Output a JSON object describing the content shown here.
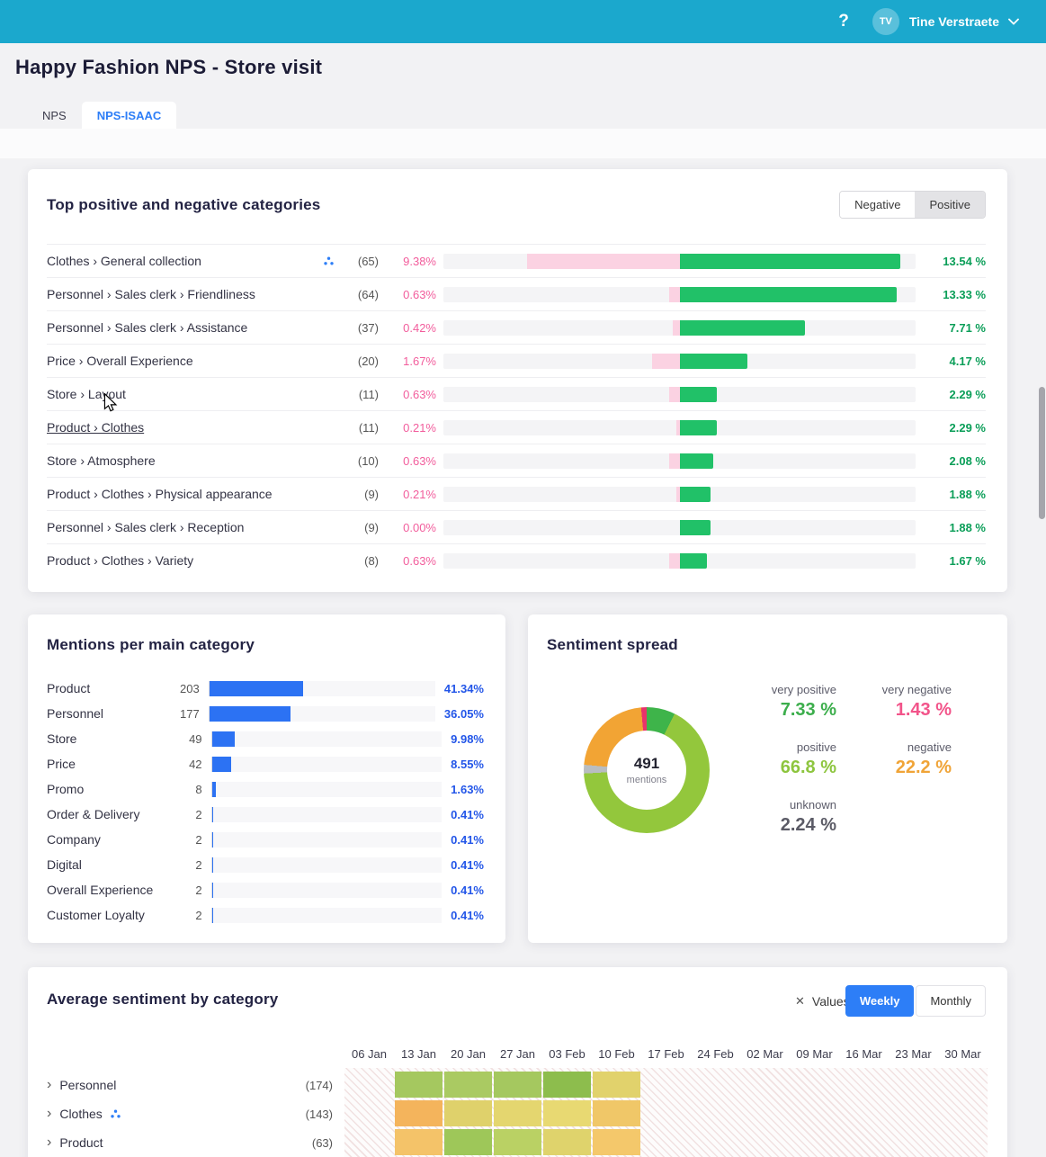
{
  "icons": {
    "chevron_right": "›",
    "close": "✕"
  },
  "topbar": {
    "help_label": "?",
    "avatar_initials": "TV",
    "user_name": "Tine Verstraete"
  },
  "page": {
    "title": "Happy Fashion NPS - Store visit",
    "tabs": [
      {
        "label": "NPS"
      },
      {
        "label": "NPS-ISAAC"
      }
    ]
  },
  "top_categories": {
    "title": "Top positive and negative categories",
    "toggle_negative": "Negative",
    "toggle_positive": "Positive",
    "bar_scale_pct_per_unit": 3.45,
    "rows": [
      {
        "label": "Clothes › General collection",
        "has_icon": true,
        "underline": false,
        "count": "(65)",
        "neg_label": "9.38%",
        "pos_label": "13.54 %",
        "neg": 9.38,
        "pos": 13.54
      },
      {
        "label": "Personnel › Sales clerk › Friendliness",
        "has_icon": false,
        "underline": false,
        "count": "(64)",
        "neg_label": "0.63%",
        "pos_label": "13.33 %",
        "neg": 0.63,
        "pos": 13.33
      },
      {
        "label": "Personnel › Sales clerk › Assistance",
        "has_icon": false,
        "underline": false,
        "count": "(37)",
        "neg_label": "0.42%",
        "pos_label": "7.71 %",
        "neg": 0.42,
        "pos": 7.71
      },
      {
        "label": "Price › Overall Experience",
        "has_icon": false,
        "underline": false,
        "count": "(20)",
        "neg_label": "1.67%",
        "pos_label": "4.17 %",
        "neg": 1.67,
        "pos": 4.17
      },
      {
        "label": "Store › Layout",
        "has_icon": false,
        "underline": false,
        "count": "(11)",
        "neg_label": "0.63%",
        "pos_label": "2.29 %",
        "neg": 0.63,
        "pos": 2.29
      },
      {
        "label": "Product › Clothes",
        "has_icon": false,
        "underline": true,
        "count": "(11)",
        "neg_label": "0.21%",
        "pos_label": "2.29 %",
        "neg": 0.21,
        "pos": 2.29
      },
      {
        "label": "Store › Atmosphere",
        "has_icon": false,
        "underline": false,
        "count": "(10)",
        "neg_label": "0.63%",
        "pos_label": "2.08 %",
        "neg": 0.63,
        "pos": 2.08
      },
      {
        "label": "Product › Clothes › Physical appearance",
        "has_icon": false,
        "underline": false,
        "count": "(9)",
        "neg_label": "0.21%",
        "pos_label": "1.88 %",
        "neg": 0.21,
        "pos": 1.88
      },
      {
        "label": "Personnel › Sales clerk › Reception",
        "has_icon": false,
        "underline": false,
        "count": "(9)",
        "neg_label": "0.00%",
        "pos_label": "1.88 %",
        "neg": 0.0,
        "pos": 1.88
      },
      {
        "label": "Product › Clothes › Variety",
        "has_icon": false,
        "underline": false,
        "count": "(8)",
        "neg_label": "0.63%",
        "pos_label": "1.67 %",
        "neg": 0.63,
        "pos": 1.67
      }
    ]
  },
  "mentions": {
    "title": "Mentions per main category",
    "rows": [
      {
        "label": "Product",
        "count": "203",
        "pct_label": "41.34%",
        "pct": 41.34
      },
      {
        "label": "Personnel",
        "count": "177",
        "pct_label": "36.05%",
        "pct": 36.05
      },
      {
        "label": "Store",
        "count": "49",
        "pct_label": "9.98%",
        "pct": 9.98
      },
      {
        "label": "Price",
        "count": "42",
        "pct_label": "8.55%",
        "pct": 8.55
      },
      {
        "label": "Promo",
        "count": "8",
        "pct_label": "1.63%",
        "pct": 1.63
      },
      {
        "label": "Order & Delivery",
        "count": "2",
        "pct_label": "0.41%",
        "pct": 0.41
      },
      {
        "label": "Company",
        "count": "2",
        "pct_label": "0.41%",
        "pct": 0.41
      },
      {
        "label": "Digital",
        "count": "2",
        "pct_label": "0.41%",
        "pct": 0.41
      },
      {
        "label": "Overall Experience",
        "count": "2",
        "pct_label": "0.41%",
        "pct": 0.41
      },
      {
        "label": "Customer Loyalty",
        "count": "2",
        "pct_label": "0.41%",
        "pct": 0.41
      }
    ]
  },
  "sentiment": {
    "title": "Sentiment spread",
    "total": "491",
    "total_sub": "mentions",
    "stats": [
      {
        "label": "very positive",
        "value": "7.33 %",
        "color": "#3cae4c"
      },
      {
        "label": "very negative",
        "value": "1.43 %",
        "color": "#f2548a"
      },
      {
        "label": "positive",
        "value": "66.8 %",
        "color": "#8dc53e"
      },
      {
        "label": "negative",
        "value": "22.2 %",
        "color": "#f0a437"
      },
      {
        "label": "unknown",
        "value": "2.24 %",
        "color": "#5b5b66"
      }
    ],
    "segments": [
      {
        "name": "very positive",
        "pct": 7.33,
        "color": "#3eb44a"
      },
      {
        "name": "positive",
        "pct": 66.8,
        "color": "#93c73c"
      },
      {
        "name": "unknown",
        "pct": 2.24,
        "color": "#b9bdc1"
      },
      {
        "name": "negative",
        "pct": 22.2,
        "color": "#f2a434"
      },
      {
        "name": "very negative",
        "pct": 1.43,
        "color": "#e8336b"
      }
    ]
  },
  "avg_sentiment": {
    "title": "Average sentiment by category",
    "values_button": "Values",
    "toggle_weekly": "Weekly",
    "toggle_monthly": "Monthly",
    "dates": [
      "06 Jan",
      "13 Jan",
      "20 Jan",
      "27 Jan",
      "03 Feb",
      "10 Feb",
      "17 Feb",
      "24 Feb",
      "02 Mar",
      "09 Mar",
      "16 Mar",
      "23 Mar",
      "30 Mar"
    ],
    "rows": [
      {
        "label": "Personnel",
        "count": "(174)",
        "has_icon": false,
        "cells": [
          {
            "col": 1,
            "color": "#a5c85f"
          },
          {
            "col": 2,
            "color": "#aaca62"
          },
          {
            "col": 3,
            "color": "#a5c85f"
          },
          {
            "col": 4,
            "color": "#8dbd4d"
          },
          {
            "col": 5,
            "color": "#e1d26c"
          }
        ]
      },
      {
        "label": "Clothes",
        "count": "(143)",
        "has_icon": true,
        "cells": [
          {
            "col": 1,
            "color": "#f4b45c"
          },
          {
            "col": 2,
            "color": "#dfd16b"
          },
          {
            "col": 3,
            "color": "#e4d66f"
          },
          {
            "col": 4,
            "color": "#e8d972"
          },
          {
            "col": 5,
            "color": "#f0c768"
          }
        ]
      },
      {
        "label": "Product",
        "count": "(63)",
        "has_icon": false,
        "cells": [
          {
            "col": 1,
            "color": "#f4c369"
          },
          {
            "col": 2,
            "color": "#9ec759"
          },
          {
            "col": 3,
            "color": "#bad164"
          },
          {
            "col": 4,
            "color": "#dfd36c"
          },
          {
            "col": 5,
            "color": "#f4c86b"
          }
        ]
      }
    ]
  },
  "chart_data": [
    {
      "type": "bar",
      "title": "Top positive and negative categories",
      "categories": [
        "Clothes › General collection",
        "Personnel › Sales clerk › Friendliness",
        "Personnel › Sales clerk › Assistance",
        "Price › Overall Experience",
        "Store › Layout",
        "Product › Clothes",
        "Store › Atmosphere",
        "Product › Clothes › Physical appearance",
        "Personnel › Sales clerk › Reception",
        "Product › Clothes › Variety"
      ],
      "series": [
        {
          "name": "negative %",
          "values": [
            9.38,
            0.63,
            0.42,
            1.67,
            0.63,
            0.21,
            0.63,
            0.21,
            0.0,
            0.63
          ]
        },
        {
          "name": "positive %",
          "values": [
            13.54,
            13.33,
            7.71,
            4.17,
            2.29,
            2.29,
            2.08,
            1.88,
            1.88,
            1.67
          ]
        },
        {
          "name": "mentions",
          "values": [
            65,
            64,
            37,
            20,
            11,
            11,
            10,
            9,
            9,
            8
          ]
        }
      ]
    },
    {
      "type": "bar",
      "title": "Mentions per main category",
      "categories": [
        "Product",
        "Personnel",
        "Store",
        "Price",
        "Promo",
        "Order & Delivery",
        "Company",
        "Digital",
        "Overall Experience",
        "Customer Loyalty"
      ],
      "values": [
        41.34,
        36.05,
        9.98,
        8.55,
        1.63,
        0.41,
        0.41,
        0.41,
        0.41,
        0.41
      ],
      "counts": [
        203,
        177,
        49,
        42,
        8,
        2,
        2,
        2,
        2,
        2
      ]
    },
    {
      "type": "pie",
      "title": "Sentiment spread",
      "center_total": 491,
      "labels": [
        "very positive",
        "positive",
        "unknown",
        "negative",
        "very negative"
      ],
      "values": [
        7.33,
        66.8,
        2.24,
        22.2,
        1.43
      ]
    },
    {
      "type": "heatmap",
      "title": "Average sentiment by category",
      "x": [
        "06 Jan",
        "13 Jan",
        "20 Jan",
        "27 Jan",
        "03 Feb",
        "10 Feb",
        "17 Feb",
        "24 Feb",
        "02 Mar",
        "09 Mar",
        "16 Mar",
        "23 Mar",
        "30 Mar"
      ],
      "y": [
        "Personnel",
        "Clothes",
        "Product"
      ],
      "note": "cell colors encode weekly average sentiment; numeric values toggled off"
    }
  ]
}
